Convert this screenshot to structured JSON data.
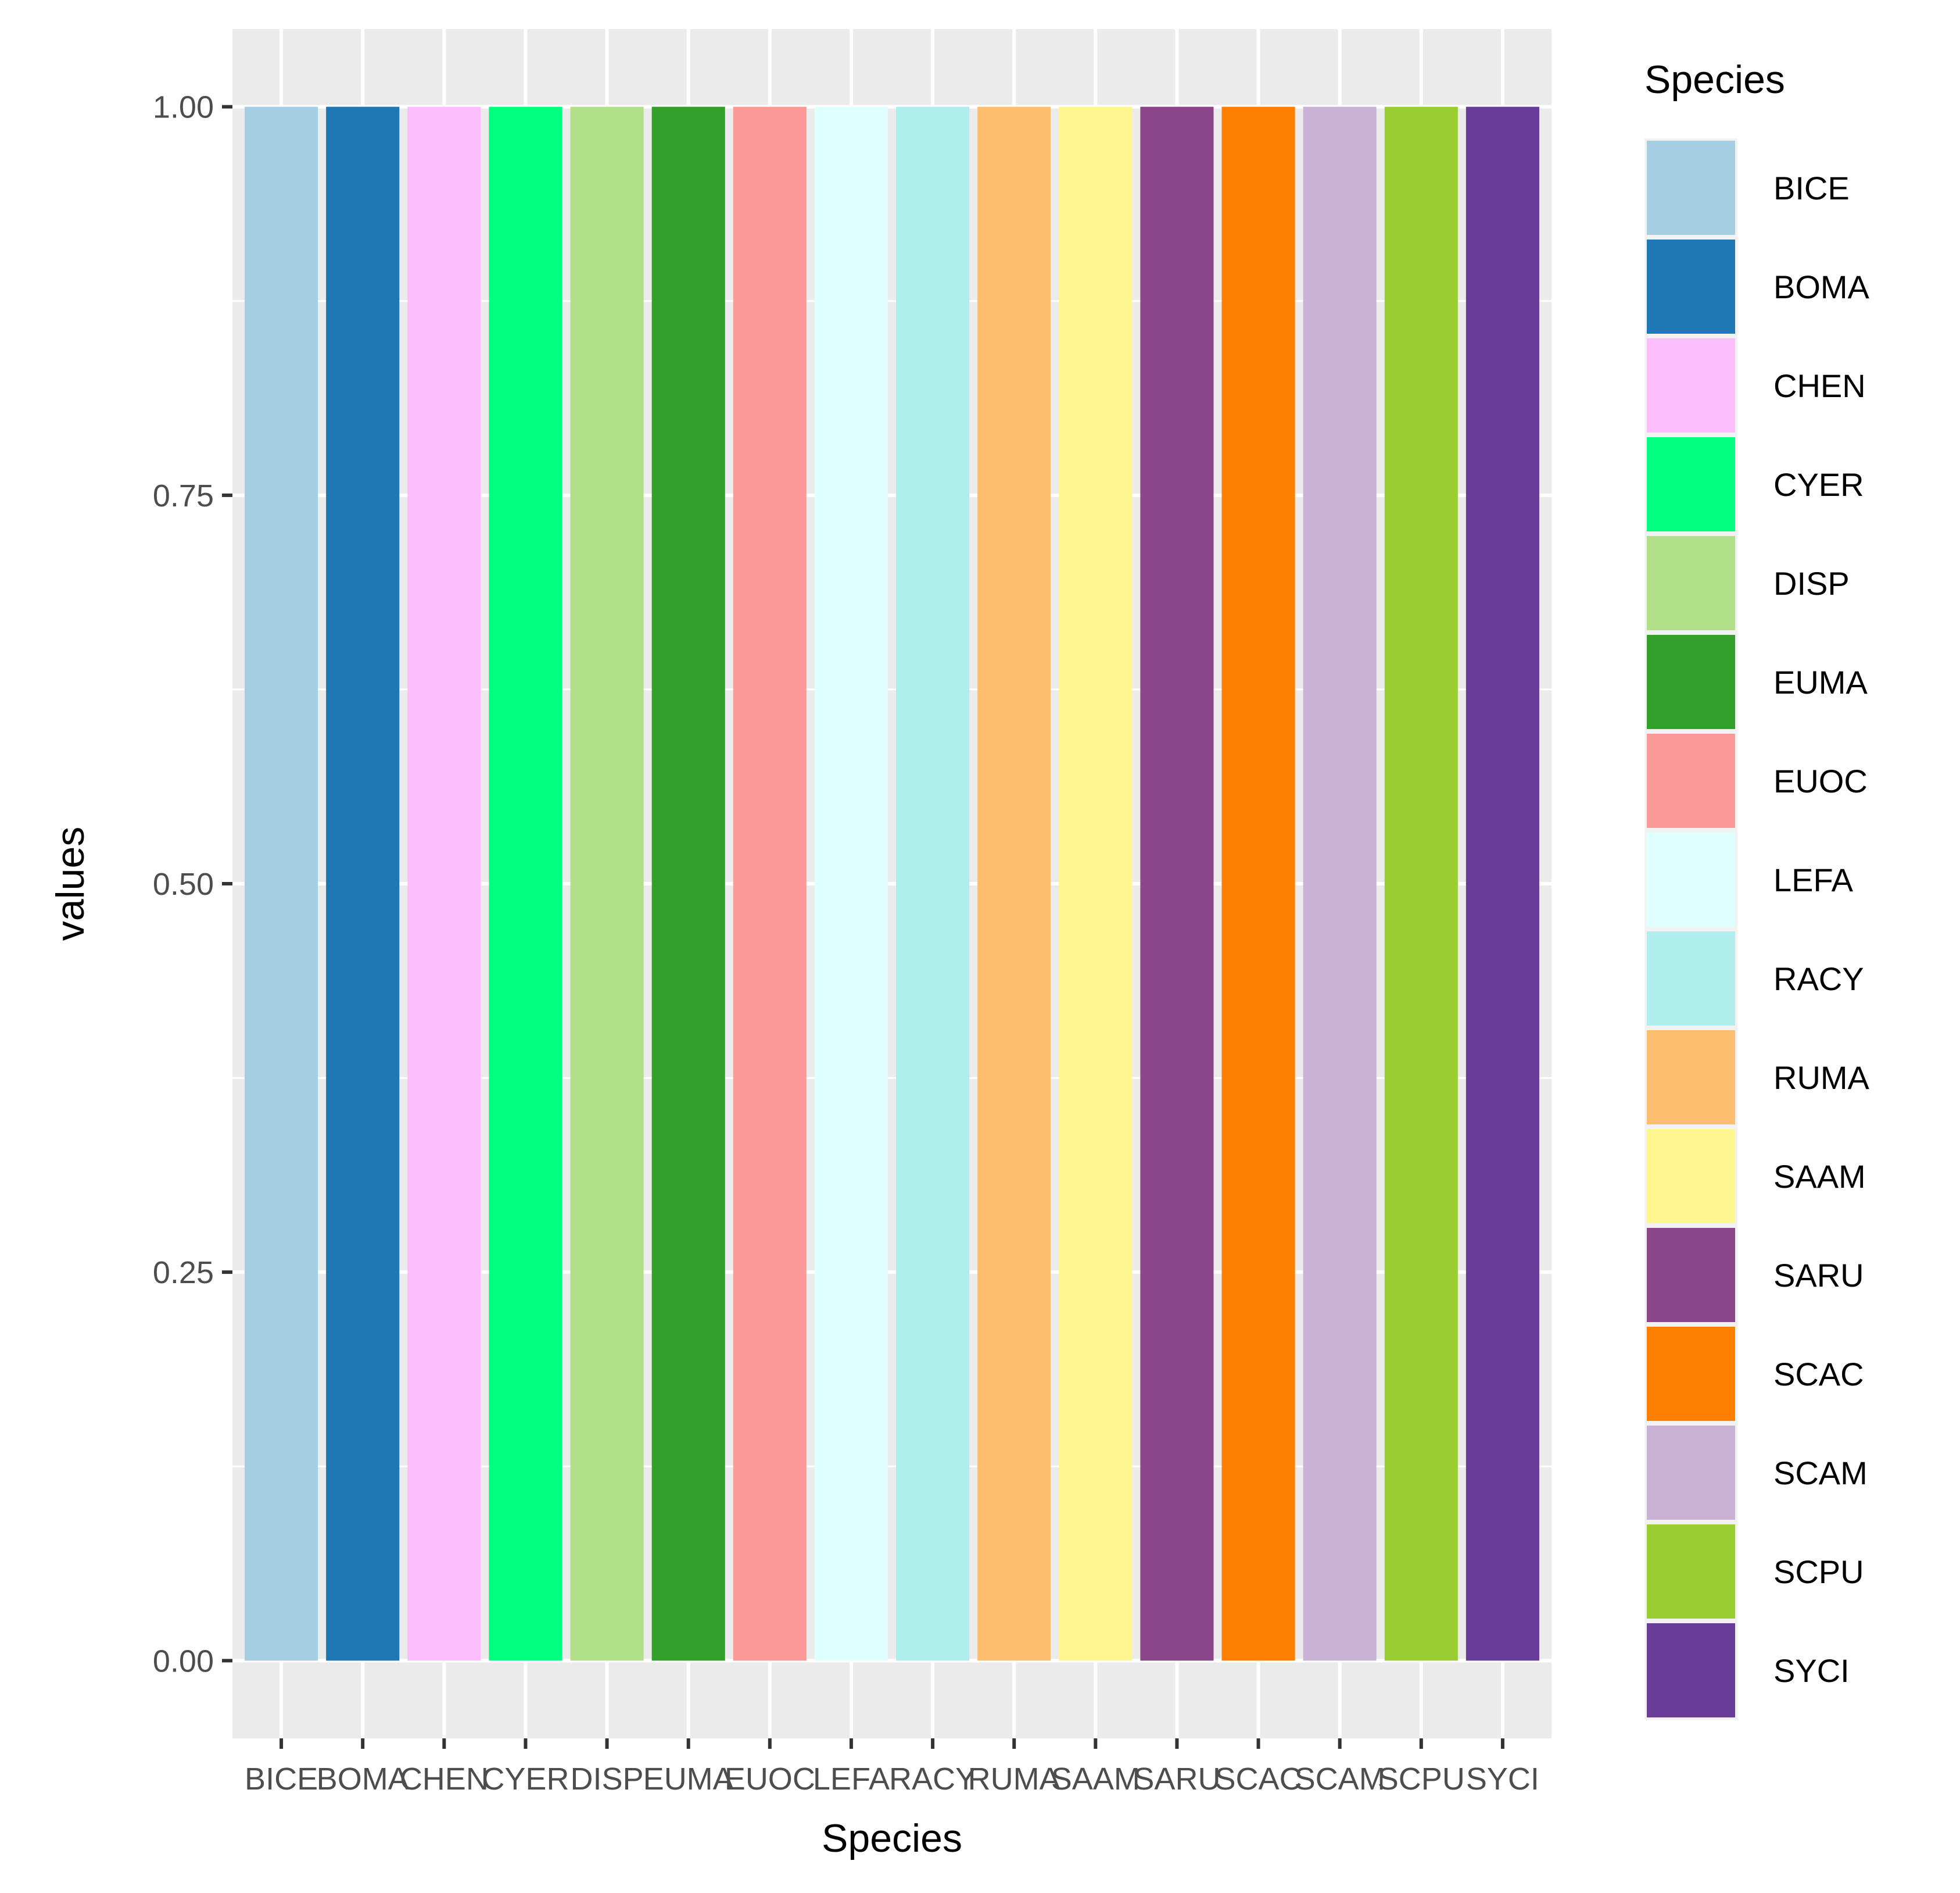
{
  "chart_data": {
    "type": "bar",
    "title": "",
    "xlabel": "Species",
    "ylabel": "values",
    "ylim": [
      -0.05,
      1.05
    ],
    "yticks": [
      0.0,
      0.25,
      0.5,
      0.75,
      1.0
    ],
    "ytick_labels": [
      "0.00",
      "0.25",
      "0.50",
      "0.75",
      "1.00"
    ],
    "grid": true,
    "categories": [
      "BICE",
      "BOMA",
      "CHEN",
      "CYER",
      "DISP",
      "EUMA",
      "EUOC",
      "LEFA",
      "RACY",
      "RUMA",
      "SAAM",
      "SARU",
      "SCAC",
      "SCAM",
      "SCPU",
      "SYCI"
    ],
    "values": [
      1,
      1,
      1,
      1,
      1,
      1,
      1,
      1,
      1,
      1,
      1,
      1,
      1,
      1,
      1,
      1
    ],
    "colors": [
      "#a6cee3",
      "#1f78b4",
      "#fbbdfc",
      "#00ff7f",
      "#b2df8a",
      "#33a02c",
      "#fb9a99",
      "#e0ffff",
      "#b0eeee",
      "#fdbf6f",
      "#fff68f",
      "#8b4789",
      "#ff7f00",
      "#cab2d6",
      "#9acd32",
      "#6a3d9a"
    ],
    "legend": {
      "title": "Species",
      "position": "right"
    }
  }
}
